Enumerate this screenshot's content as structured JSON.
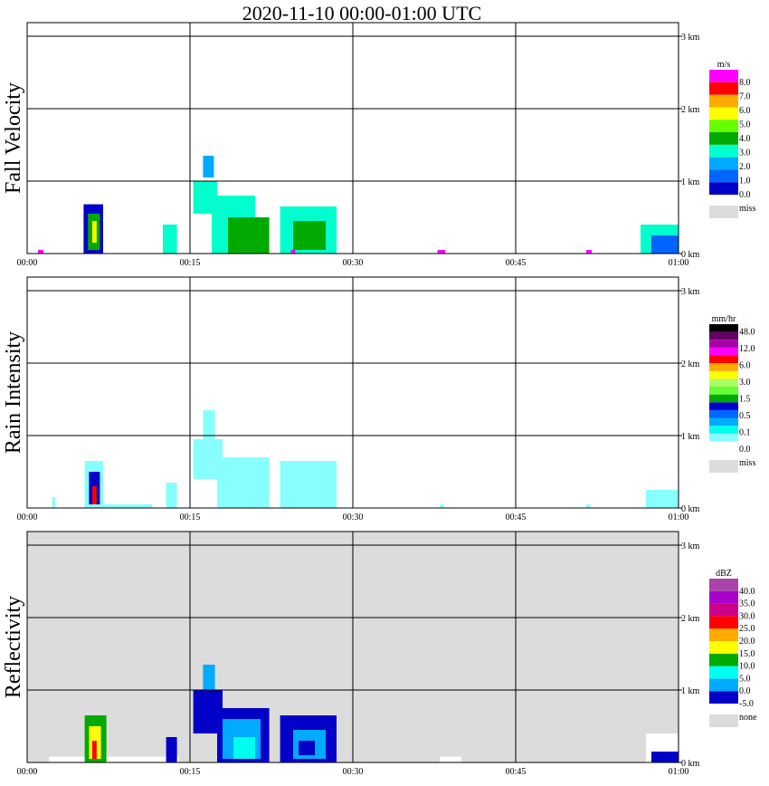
{
  "chart_data": {
    "title": "2020-11-10   00:00-01:00 UTC",
    "time_ticks": [
      "00:00",
      "00:15",
      "00:30",
      "00:45",
      "01:00"
    ],
    "height_ticks": [
      "0 km",
      "1 km",
      "2 km",
      "3 km"
    ],
    "missing_color": "#dcdcdc",
    "panels": [
      {
        "type": "heatmap",
        "ylabel": "Fall Velocity",
        "background": "#ffffff",
        "legend": {
          "unit": "m/s",
          "colors": [
            "#0000c8",
            "#0064ff",
            "#00aaff",
            "#00ffcc",
            "#00aa00",
            "#66ff00",
            "#ffff00",
            "#ffaa00",
            "#ff0000",
            "#ff00ff"
          ],
          "labels": [
            "0.0",
            "1.0",
            "2.0",
            "3.0",
            "4.0",
            "5.0",
            "6.0",
            "7.0",
            "8.0"
          ],
          "miss": "miss"
        },
        "echoes": [
          {
            "t0": 5.2,
            "t1": 7.0,
            "h0": 0,
            "h1": 0.68,
            "c": "#0000c8"
          },
          {
            "t0": 5.6,
            "t1": 6.7,
            "h0": 0.05,
            "h1": 0.55,
            "c": "#00aa00"
          },
          {
            "t0": 6.0,
            "t1": 6.4,
            "h0": 0.15,
            "h1": 0.45,
            "c": "#ffff00"
          },
          {
            "t0": 1.0,
            "t1": 1.5,
            "h0": 0,
            "h1": 0.05,
            "c": "#ff00ff"
          },
          {
            "t0": 12.5,
            "t1": 13.8,
            "h0": 0,
            "h1": 0.4,
            "c": "#00ffcc"
          },
          {
            "t0": 16.2,
            "t1": 17.2,
            "h0": 1.05,
            "h1": 1.35,
            "c": "#00aaff"
          },
          {
            "t0": 15.3,
            "t1": 17.5,
            "h0": 0.55,
            "h1": 1.0,
            "c": "#00ffcc"
          },
          {
            "t0": 17.0,
            "t1": 21.0,
            "h0": 0,
            "h1": 0.8,
            "c": "#00ffcc"
          },
          {
            "t0": 18.5,
            "t1": 22.3,
            "h0": 0,
            "h1": 0.5,
            "c": "#00aa00"
          },
          {
            "t0": 23.3,
            "t1": 28.5,
            "h0": 0,
            "h1": 0.65,
            "c": "#00ffcc"
          },
          {
            "t0": 24.5,
            "t1": 27.5,
            "h0": 0.05,
            "h1": 0.45,
            "c": "#00aa00"
          },
          {
            "t0": 24.3,
            "t1": 24.7,
            "h0": 0,
            "h1": 0.05,
            "c": "#ff00ff"
          },
          {
            "t0": 37.8,
            "t1": 38.5,
            "h0": 0,
            "h1": 0.05,
            "c": "#ff00ff"
          },
          {
            "t0": 51.5,
            "t1": 52.0,
            "h0": 0,
            "h1": 0.05,
            "c": "#ff00ff"
          },
          {
            "t0": 56.5,
            "t1": 60.0,
            "h0": 0,
            "h1": 0.4,
            "c": "#00ffcc"
          },
          {
            "t0": 57.5,
            "t1": 60.0,
            "h0": 0,
            "h1": 0.25,
            "c": "#0064ff"
          }
        ]
      },
      {
        "type": "heatmap",
        "ylabel": "Rain Intensity",
        "background": "#ffffff",
        "legend": {
          "unit": "mm/hr",
          "colors": [
            "#ffffff",
            "#88ffff",
            "#00ffee",
            "#00aaff",
            "#0064ff",
            "#0000c8",
            "#00aa00",
            "#66ff33",
            "#aaff66",
            "#ffff00",
            "#ffaa00",
            "#ff0000",
            "#ff00ff",
            "#aa00aa",
            "#660066",
            "#000000"
          ],
          "labels": [
            "0.0",
            "0.1",
            "0.5",
            "1.5",
            "3.0",
            "6.0",
            "12.0",
            "48.0"
          ],
          "miss": "miss"
        },
        "echoes": [
          {
            "t0": 5.3,
            "t1": 7.0,
            "h0": 0,
            "h1": 0.65,
            "c": "#88ffff"
          },
          {
            "t0": 5.7,
            "t1": 6.7,
            "h0": 0.05,
            "h1": 0.5,
            "c": "#0000c8"
          },
          {
            "t0": 6.0,
            "t1": 6.4,
            "h0": 0.05,
            "h1": 0.3,
            "c": "#ff0000"
          },
          {
            "t0": 2.3,
            "t1": 2.6,
            "h0": 0,
            "h1": 0.15,
            "c": "#88ffff"
          },
          {
            "t0": 7.0,
            "t1": 11.5,
            "h0": 0,
            "h1": 0.05,
            "c": "#88ffff"
          },
          {
            "t0": 12.8,
            "t1": 13.8,
            "h0": 0,
            "h1": 0.35,
            "c": "#88ffff"
          },
          {
            "t0": 16.2,
            "t1": 17.3,
            "h0": 0.95,
            "h1": 1.35,
            "c": "#88ffff"
          },
          {
            "t0": 15.3,
            "t1": 18.0,
            "h0": 0.4,
            "h1": 0.95,
            "c": "#88ffff"
          },
          {
            "t0": 17.5,
            "t1": 22.3,
            "h0": 0,
            "h1": 0.7,
            "c": "#88ffff"
          },
          {
            "t0": 23.3,
            "t1": 28.5,
            "h0": 0,
            "h1": 0.65,
            "c": "#88ffff"
          },
          {
            "t0": 38.0,
            "t1": 38.4,
            "h0": 0,
            "h1": 0.05,
            "c": "#88ffff"
          },
          {
            "t0": 51.5,
            "t1": 51.9,
            "h0": 0,
            "h1": 0.05,
            "c": "#88ffff"
          },
          {
            "t0": 57.0,
            "t1": 60.0,
            "h0": 0,
            "h1": 0.25,
            "c": "#88ffff"
          }
        ]
      },
      {
        "type": "heatmap",
        "ylabel": "Reflectivity",
        "background": "#dcdcdc",
        "legend": {
          "unit": "dBZ",
          "colors": [
            "#0000c8",
            "#00aaff",
            "#00ffee",
            "#00aa00",
            "#ffff00",
            "#ffaa00",
            "#ff0000",
            "#cc0088",
            "#aa00cc",
            "#aa44aa"
          ],
          "labels": [
            "-5.0",
            "0.0",
            "5.0",
            "10.0",
            "15.0",
            "20.0",
            "25.0",
            "30.0",
            "35.0",
            "40.0"
          ],
          "miss": "none"
        },
        "echoes": [
          {
            "t0": 2.0,
            "t1": 14.0,
            "h0": 0,
            "h1": 0.08,
            "c": "#ffffff"
          },
          {
            "t0": 5.3,
            "t1": 7.3,
            "h0": 0,
            "h1": 0.65,
            "c": "#00aa00"
          },
          {
            "t0": 5.7,
            "t1": 6.8,
            "h0": 0.05,
            "h1": 0.5,
            "c": "#ffff00"
          },
          {
            "t0": 6.0,
            "t1": 6.4,
            "h0": 0.05,
            "h1": 0.3,
            "c": "#ff0000"
          },
          {
            "t0": 12.8,
            "t1": 13.8,
            "h0": 0,
            "h1": 0.35,
            "c": "#0000c8"
          },
          {
            "t0": 16.2,
            "t1": 17.3,
            "h0": 0.95,
            "h1": 1.35,
            "c": "#00aaff"
          },
          {
            "t0": 15.3,
            "t1": 18.0,
            "h0": 0.4,
            "h1": 1.0,
            "c": "#0000c8"
          },
          {
            "t0": 17.5,
            "t1": 22.3,
            "h0": 0,
            "h1": 0.75,
            "c": "#0000c8"
          },
          {
            "t0": 18.0,
            "t1": 21.5,
            "h0": 0.05,
            "h1": 0.6,
            "c": "#00aaff"
          },
          {
            "t0": 19.0,
            "t1": 21.0,
            "h0": 0.05,
            "h1": 0.35,
            "c": "#00ffee"
          },
          {
            "t0": 23.3,
            "t1": 28.5,
            "h0": 0,
            "h1": 0.65,
            "c": "#0000c8"
          },
          {
            "t0": 24.5,
            "t1": 27.5,
            "h0": 0.05,
            "h1": 0.45,
            "c": "#00aaff"
          },
          {
            "t0": 25.0,
            "t1": 26.5,
            "h0": 0.1,
            "h1": 0.3,
            "c": "#0000c8"
          },
          {
            "t0": 38.0,
            "t1": 40.0,
            "h0": 0,
            "h1": 0.08,
            "c": "#ffffff"
          },
          {
            "t0": 57.0,
            "t1": 60.0,
            "h0": 0,
            "h1": 0.4,
            "c": "#ffffff"
          },
          {
            "t0": 57.5,
            "t1": 60.0,
            "h0": 0,
            "h1": 0.15,
            "c": "#0000c8"
          }
        ]
      }
    ]
  }
}
